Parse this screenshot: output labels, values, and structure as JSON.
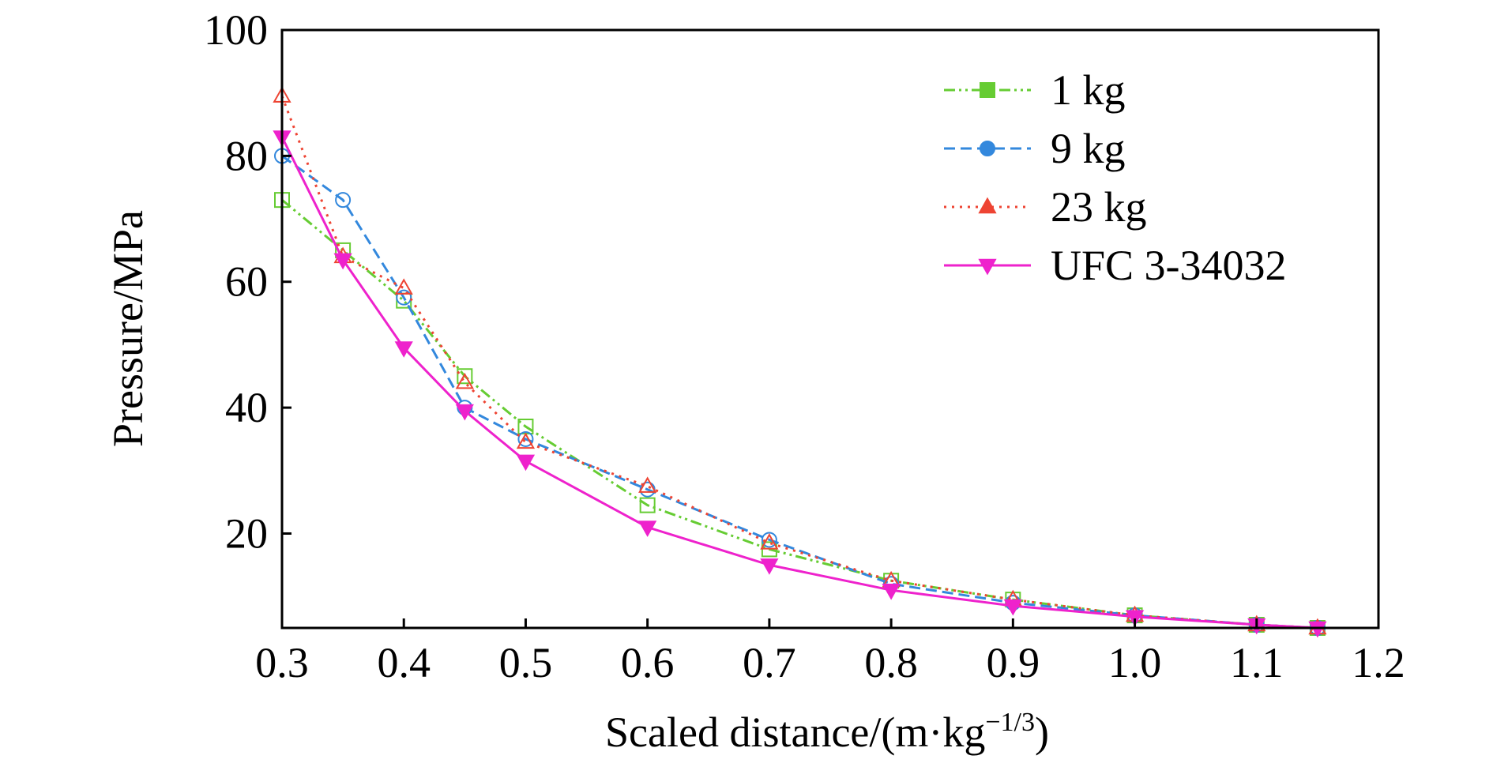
{
  "chart_data": {
    "type": "line",
    "title": "",
    "xlabel": "Scaled distance/(m·kg",
    "xlabel_sup": "−1/3",
    "xlabel_end": ")",
    "ylabel": "Pressure/MPa",
    "xlim": [
      0.3,
      1.2
    ],
    "ylim": [
      5,
      100
    ],
    "xticks": [
      0.3,
      0.4,
      0.5,
      0.6,
      0.7,
      0.8,
      0.9,
      1.0,
      1.1,
      1.2
    ],
    "xtick_labels": [
      "0.3",
      "0.4",
      "0.5",
      "0.6",
      "0.7",
      "0.8",
      "0.9",
      "1.0",
      "1.1",
      "1.2"
    ],
    "yticks": [
      20,
      40,
      60,
      80,
      100
    ],
    "ytick_labels": [
      "20",
      "40",
      "60",
      "80",
      "100"
    ],
    "grid": false,
    "legend_position": "top-right",
    "series": [
      {
        "name": "1 kg",
        "color": "#66cc33",
        "marker": "square",
        "line_style": "dash-dot-dot",
        "x": [
          0.3,
          0.35,
          0.4,
          0.45,
          0.5,
          0.6,
          0.7,
          0.8,
          0.9,
          1.0,
          1.1,
          1.15
        ],
        "y": [
          73,
          65,
          57,
          45,
          37,
          24.5,
          17.5,
          12.5,
          9.5,
          7,
          5.5,
          5
        ]
      },
      {
        "name": "9 kg",
        "color": "#3388dd",
        "marker": "circle",
        "line_style": "dashed",
        "x": [
          0.3,
          0.35,
          0.4,
          0.45,
          0.5,
          0.6,
          0.7,
          0.8,
          0.9,
          1.0,
          1.1,
          1.15
        ],
        "y": [
          80,
          73,
          57.5,
          40,
          35,
          27,
          19,
          12,
          9,
          7,
          5.5,
          5
        ]
      },
      {
        "name": "23 kg",
        "color": "#ee4433",
        "marker": "triangle-up",
        "line_style": "dotted",
        "x": [
          0.3,
          0.35,
          0.4,
          0.45,
          0.5,
          0.6,
          0.7,
          0.8,
          0.9,
          1.0,
          1.1,
          1.15
        ],
        "y": [
          89.5,
          64,
          59,
          44,
          34.5,
          27.5,
          18.5,
          12.5,
          9.5,
          7,
          5.5,
          5
        ]
      },
      {
        "name": "UFC 3-34032",
        "color": "#ee22cc",
        "marker": "triangle-down",
        "line_style": "solid",
        "x": [
          0.3,
          0.35,
          0.4,
          0.45,
          0.5,
          0.6,
          0.7,
          0.8,
          0.9,
          1.0,
          1.1,
          1.15
        ],
        "y": [
          83,
          63.5,
          49.5,
          39.5,
          31.5,
          21,
          15,
          11,
          8.5,
          6.8,
          5.5,
          5
        ]
      }
    ]
  }
}
